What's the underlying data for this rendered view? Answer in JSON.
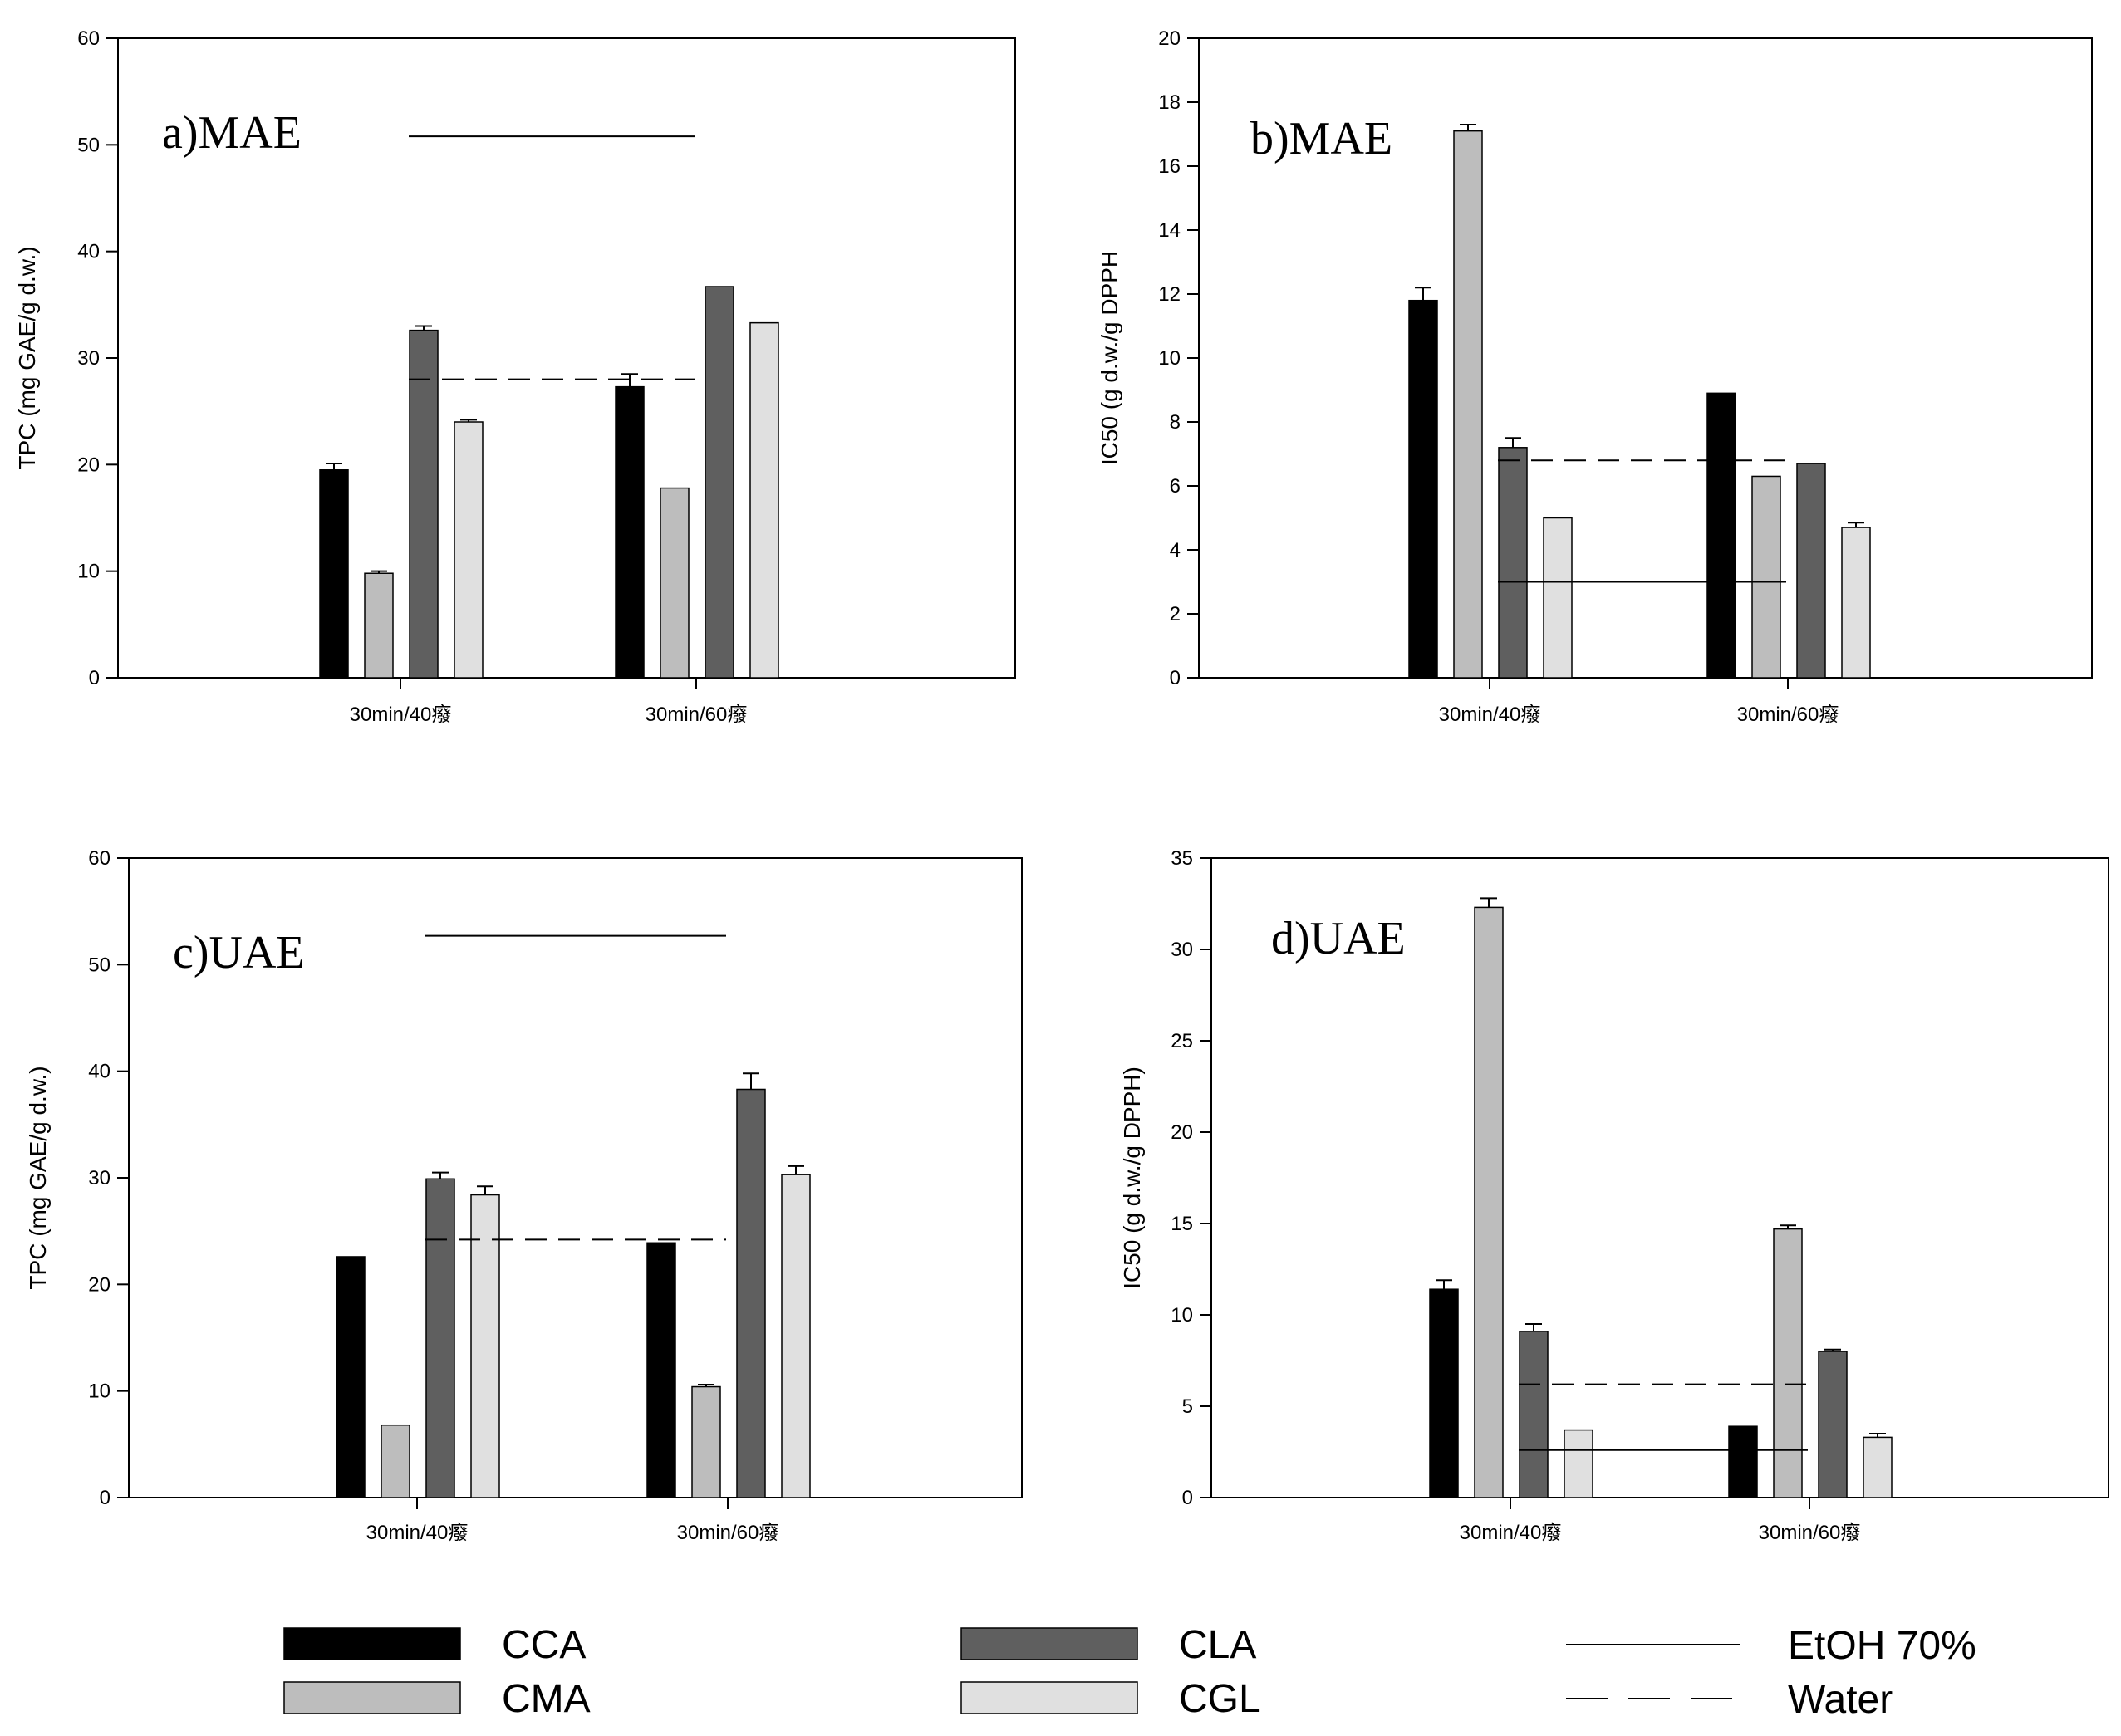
{
  "series_colors": {
    "CCA": "#000000",
    "CMA": "#bdbdbd",
    "CLA": "#5f5f5f",
    "CGL": "#e0e0e0"
  },
  "legend": {
    "bars": [
      {
        "name": "CCA",
        "color": "#000000"
      },
      {
        "name": "CMA",
        "color": "#bdbdbd"
      },
      {
        "name": "CLA",
        "color": "#5f5f5f"
      },
      {
        "name": "CGL",
        "color": "#e0e0e0"
      }
    ],
    "lines": [
      {
        "name": "EtOH 70%",
        "style": "solid"
      },
      {
        "name": "Water",
        "style": "dashed"
      }
    ]
  },
  "chart_data": [
    {
      "type": "bar",
      "title": "a)MAE",
      "ylabel": "TPC (mg GAE/g d.w.)",
      "ylim": [
        0,
        60
      ],
      "yticks": [
        0,
        10,
        20,
        30,
        40,
        50,
        60
      ],
      "categories": [
        "30min/40癈",
        "30min/60癈"
      ],
      "series": [
        {
          "name": "CCA",
          "values": [
            19.5,
            27.3
          ],
          "errors": [
            0.6,
            1.2
          ]
        },
        {
          "name": "CMA",
          "values": [
            9.8,
            17.8
          ],
          "errors": [
            0.2,
            0
          ]
        },
        {
          "name": "CLA",
          "values": [
            32.6,
            36.7
          ],
          "errors": [
            0.4,
            0
          ]
        },
        {
          "name": "CGL",
          "values": [
            24.0,
            33.3
          ],
          "errors": [
            0.2,
            0
          ]
        }
      ],
      "reference_lines": [
        {
          "name": "EtOH 70%",
          "style": "solid",
          "value": 50.8
        },
        {
          "name": "Water",
          "style": "dashed",
          "value": 28.0
        }
      ]
    },
    {
      "type": "bar",
      "title": "b)MAE",
      "ylabel": "IC50 (g d.w./g DPPH",
      "ylim": [
        0,
        20
      ],
      "yticks": [
        0,
        2,
        4,
        6,
        8,
        10,
        12,
        14,
        16,
        18,
        20
      ],
      "categories": [
        "30min/40癈",
        "30min/60癈"
      ],
      "series": [
        {
          "name": "CCA",
          "values": [
            11.8,
            8.9
          ],
          "errors": [
            0.4,
            0
          ]
        },
        {
          "name": "CMA",
          "values": [
            17.1,
            6.3
          ],
          "errors": [
            0.2,
            0
          ]
        },
        {
          "name": "CLA",
          "values": [
            7.2,
            6.7
          ],
          "errors": [
            0.3,
            0
          ]
        },
        {
          "name": "CGL",
          "values": [
            5.0,
            4.7
          ],
          "errors": [
            0,
            0.15
          ]
        }
      ],
      "reference_lines": [
        {
          "name": "EtOH 70%",
          "style": "solid",
          "value": 3.0
        },
        {
          "name": "Water",
          "style": "dashed",
          "value": 6.8
        }
      ]
    },
    {
      "type": "bar",
      "title": "c)UAE",
      "ylabel": "TPC (mg GAE/g d.w.)",
      "ylim": [
        0,
        60
      ],
      "yticks": [
        0,
        10,
        20,
        30,
        40,
        50,
        60
      ],
      "categories": [
        "30min/40癈",
        "30min/60癈"
      ],
      "series": [
        {
          "name": "CCA",
          "values": [
            22.6,
            23.9
          ],
          "errors": [
            0,
            0
          ]
        },
        {
          "name": "CMA",
          "values": [
            6.8,
            10.4
          ],
          "errors": [
            0,
            0.2
          ]
        },
        {
          "name": "CLA",
          "values": [
            29.9,
            38.3
          ],
          "errors": [
            0.6,
            1.5
          ]
        },
        {
          "name": "CGL",
          "values": [
            28.4,
            30.3
          ],
          "errors": [
            0.8,
            0.8
          ]
        }
      ],
      "reference_lines": [
        {
          "name": "EtOH 70%",
          "style": "solid",
          "value": 52.7
        },
        {
          "name": "Water",
          "style": "dashed",
          "value": 24.2
        }
      ]
    },
    {
      "type": "bar",
      "title": "d)UAE",
      "ylabel": "IC50 (g d.w./g DPPH)",
      "ylim": [
        0,
        35
      ],
      "yticks": [
        0,
        5,
        10,
        15,
        20,
        25,
        30,
        35
      ],
      "categories": [
        "30min/40癈",
        "30min/60癈"
      ],
      "series": [
        {
          "name": "CCA",
          "values": [
            11.4,
            3.9
          ],
          "errors": [
            0.5,
            0
          ]
        },
        {
          "name": "CMA",
          "values": [
            32.3,
            14.7
          ],
          "errors": [
            0.5,
            0.2
          ]
        },
        {
          "name": "CLA",
          "values": [
            9.1,
            8.0
          ],
          "errors": [
            0.4,
            0.1
          ]
        },
        {
          "name": "CGL",
          "values": [
            3.7,
            3.3
          ],
          "errors": [
            0,
            0.2
          ]
        }
      ],
      "reference_lines": [
        {
          "name": "EtOH 70%",
          "style": "solid",
          "value": 2.6
        },
        {
          "name": "Water",
          "style": "dashed",
          "value": 6.2
        }
      ]
    }
  ]
}
